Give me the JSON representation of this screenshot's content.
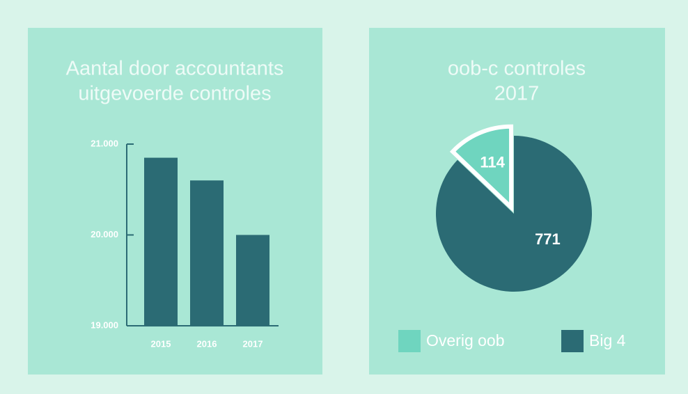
{
  "chart_data": [
    {
      "type": "bar",
      "title": [
        "Aantal door accountants",
        "uitgevoerde controles"
      ],
      "categories": [
        "2015",
        "2016",
        "2017"
      ],
      "values": [
        20850,
        20600,
        20000
      ],
      "color": "#2b6b74",
      "ylim": [
        19000,
        21000
      ],
      "yticks": [
        {
          "value": 19000,
          "label": "19.000"
        },
        {
          "value": 20000,
          "label": "20.000"
        },
        {
          "value": 21000,
          "label": "21.000"
        }
      ]
    },
    {
      "type": "pie",
      "title": [
        "oob-c controles",
        "2017"
      ],
      "categories": [
        "Overig oob",
        "Big 4"
      ],
      "values": [
        114,
        771
      ],
      "colors": [
        "#6fd5bf",
        "#2b6b74"
      ]
    }
  ]
}
